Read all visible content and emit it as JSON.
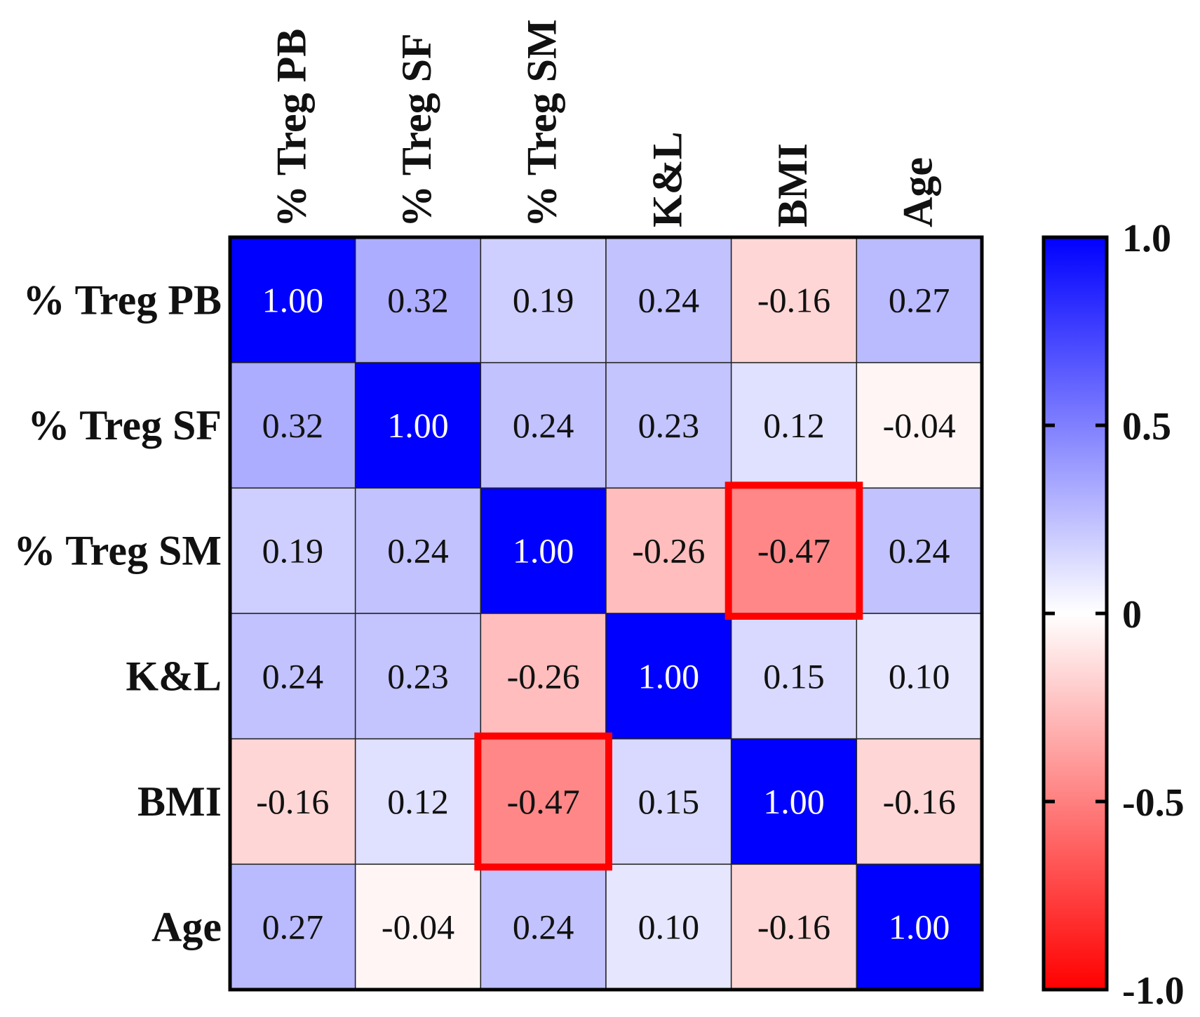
{
  "chart_data": {
    "type": "heatmap",
    "row_labels": [
      "% Treg PB",
      "% Treg SF",
      "% Treg SM",
      "K&L",
      "BMI",
      "Age"
    ],
    "col_labels": [
      "% Treg PB",
      "% Treg SF",
      "% Treg SM",
      "K&L",
      "BMI",
      "Age"
    ],
    "values": [
      [
        "1.00",
        "0.32",
        "0.19",
        "0.24",
        "-0.16",
        "0.27"
      ],
      [
        "0.32",
        "1.00",
        "0.24",
        "0.23",
        "0.12",
        "-0.04"
      ],
      [
        "0.19",
        "0.24",
        "1.00",
        "-0.26",
        "-0.47",
        "0.24"
      ],
      [
        "0.24",
        "0.23",
        "-0.26",
        "1.00",
        "0.15",
        "0.10"
      ],
      [
        "-0.16",
        "0.12",
        "-0.47",
        "0.15",
        "1.00",
        "-0.16"
      ],
      [
        "0.27",
        "-0.04",
        "0.24",
        "0.10",
        "-0.16",
        "1.00"
      ]
    ],
    "highlighted_cells": [
      [
        2,
        4
      ],
      [
        4,
        2
      ]
    ],
    "colorbar": {
      "min": -1.0,
      "max": 1.0,
      "ticks": [
        "1.0",
        "0.5",
        "0",
        "-0.5",
        "-1.0"
      ],
      "colors": {
        "negative": "#ff0000",
        "zero": "#ffffff",
        "positive": "#0000ff"
      }
    },
    "highlight_color": "#ff0000",
    "legend_placement": "right"
  }
}
